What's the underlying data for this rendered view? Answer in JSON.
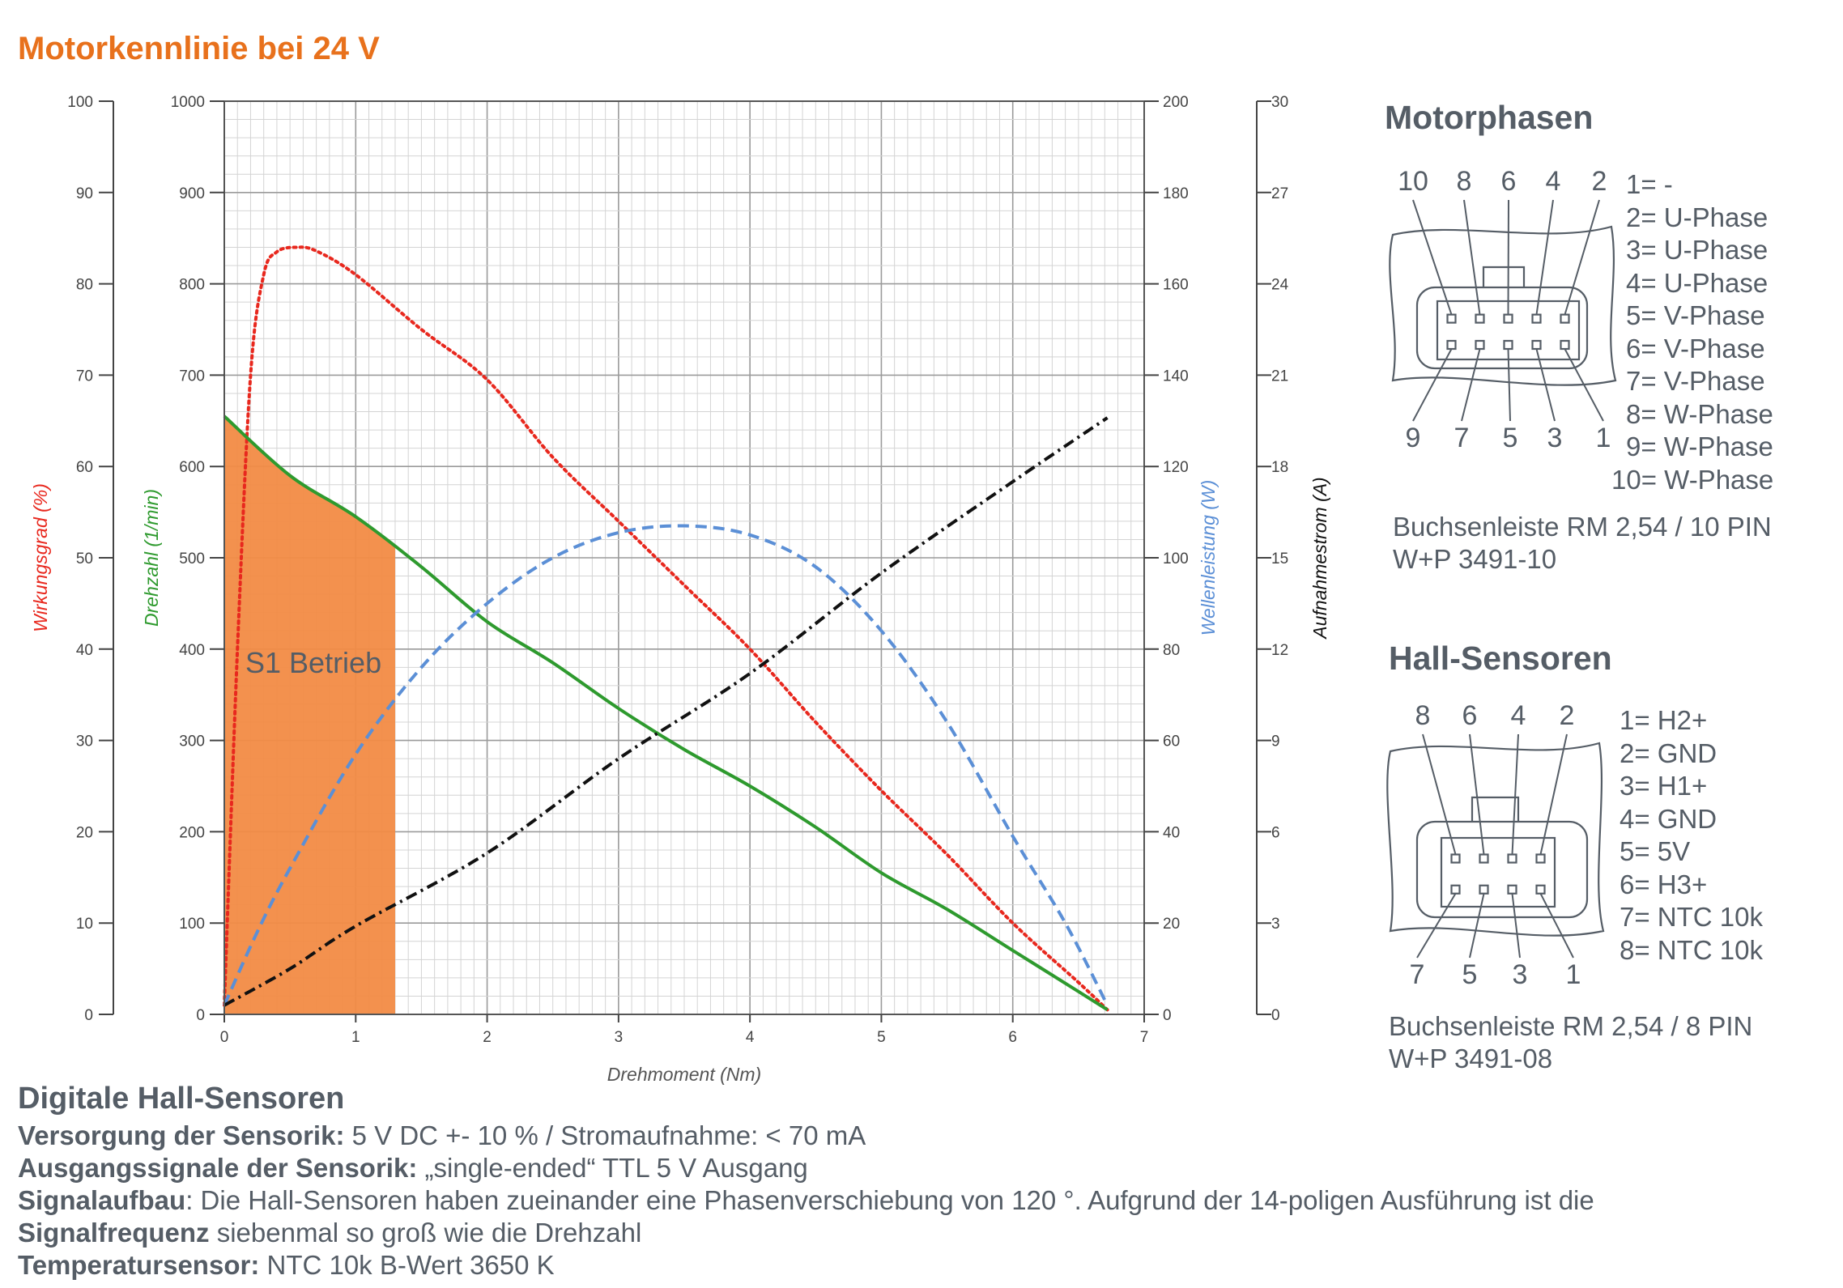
{
  "title": "Motorkennlinie bei 24 V",
  "chart_data": {
    "type": "line",
    "xlabel": "Drehmoment (Nm)",
    "xlim": [
      0,
      7
    ],
    "x_ticks": [
      "0",
      "1",
      "2",
      "3",
      "4",
      "5",
      "6",
      "7"
    ],
    "region": {
      "label": "S1 Betrieb",
      "x_from": 0,
      "x_to": 1.3,
      "color": "#f28b45"
    },
    "axes": [
      {
        "id": "eff",
        "label": "Wirkungsgrad (%)",
        "range": [
          0,
          100
        ],
        "ticks": [
          "0",
          "10",
          "20",
          "30",
          "40",
          "50",
          "60",
          "70",
          "80",
          "90",
          "100"
        ],
        "color": "#e8281e"
      },
      {
        "id": "speed",
        "label": "Drehzahl (1/min)",
        "range": [
          0,
          1000
        ],
        "ticks": [
          "0",
          "100",
          "200",
          "300",
          "400",
          "500",
          "600",
          "700",
          "800",
          "900",
          "1000"
        ],
        "color": "#2e9a2e"
      },
      {
        "id": "power",
        "label": "Wellenleistung (W)",
        "range": [
          0,
          200
        ],
        "ticks": [
          "0",
          "20",
          "40",
          "60",
          "80",
          "100",
          "120",
          "140",
          "160",
          "180",
          "200"
        ],
        "color": "#5b8fd6"
      },
      {
        "id": "curr",
        "label": "Aufnahmestrom (A)",
        "range": [
          0,
          30
        ],
        "ticks": [
          "0",
          "3",
          "6",
          "9",
          "12",
          "15",
          "18",
          "21",
          "24",
          "27",
          "30"
        ],
        "color": "#111111"
      }
    ],
    "series": [
      {
        "name": "Wirkungsgrad (%)",
        "axis": "eff",
        "color": "#e8281e",
        "style": "dotted",
        "x": [
          0,
          0.1,
          0.2,
          0.3,
          0.4,
          0.55,
          0.7,
          1.0,
          1.5,
          2.0,
          2.5,
          3.0,
          3.5,
          4.0,
          4.5,
          5.0,
          5.5,
          6.0,
          6.5,
          6.72
        ],
        "y": [
          1,
          40,
          70,
          81,
          83.5,
          84,
          83.6,
          81,
          75,
          69.5,
          61,
          54,
          47,
          40,
          32,
          24.5,
          17.5,
          10,
          3.5,
          0.5
        ]
      },
      {
        "name": "Drehzahl (1/min)",
        "axis": "speed",
        "color": "#2e9a2e",
        "style": "solid",
        "x": [
          0,
          0.5,
          1.0,
          1.5,
          2.0,
          2.5,
          3.0,
          3.5,
          4.0,
          4.5,
          5.0,
          5.5,
          6.0,
          6.5,
          6.72
        ],
        "y": [
          655,
          590,
          545,
          490,
          430,
          385,
          335,
          290,
          250,
          205,
          155,
          115,
          70,
          25,
          5
        ]
      },
      {
        "name": "Wellenleistung (W)",
        "axis": "power",
        "color": "#5b8fd6",
        "style": "dashed",
        "x": [
          0,
          0.25,
          0.5,
          1.0,
          1.5,
          2.0,
          2.5,
          3.0,
          3.5,
          4.0,
          4.5,
          5.0,
          5.5,
          6.0,
          6.4,
          6.72
        ],
        "y": [
          2,
          18,
          32,
          57,
          76,
          90,
          100,
          105.5,
          107,
          105,
          98,
          84,
          64,
          39,
          20,
          2
        ]
      },
      {
        "name": "Aufnahmestrom (A)",
        "axis": "curr",
        "color": "#111111",
        "style": "dashdot",
        "x": [
          0,
          0.5,
          1.0,
          2.0,
          3.0,
          4.0,
          5.0,
          6.0,
          6.72
        ],
        "y": [
          0.3,
          1.5,
          2.9,
          5.3,
          8.4,
          11.2,
          14.5,
          17.5,
          19.6
        ]
      }
    ]
  },
  "motorphasen": {
    "title": "Motorphasen",
    "top_pins": [
      "10",
      "8",
      "6",
      "4",
      "2"
    ],
    "bottom_pins": [
      "9",
      "7",
      "5",
      "3",
      "1"
    ],
    "legend": [
      "1= -",
      "2= U-Phase",
      "3= U-Phase",
      "4= U-Phase",
      "5= V-Phase",
      "6= V-Phase",
      "7= V-Phase",
      "8= W-Phase",
      "9= W-Phase",
      "10= W-Phase"
    ],
    "caption_line1": "Buchsenleiste RM 2,54 / 10 PIN",
    "caption_line2": "W+P 3491-10"
  },
  "hall": {
    "title": "Hall-Sensoren",
    "top_pins": [
      "8",
      "6",
      "4",
      "2"
    ],
    "bottom_pins": [
      "7",
      "5",
      "3",
      "1"
    ],
    "legend": [
      "1= H2+",
      "2= GND",
      "3= H1+",
      "4= GND",
      "5= 5V",
      "6= H3+",
      "7= NTC 10k",
      "8= NTC 10k"
    ],
    "caption_line1": "Buchsenleiste RM 2,54 / 8 PIN",
    "caption_line2": "W+P 3491-08"
  },
  "specs": {
    "heading": "Digitale Hall-Sensoren",
    "lines": [
      {
        "label": "Versorgung der Sensorik:",
        "text": " 5 V DC +- 10 % / Stromaufnahme: < 70 mA"
      },
      {
        "label": "Ausgangssignale der Sensorik:",
        "text": " „single-ended“ TTL 5 V Ausgang"
      },
      {
        "label": "Signalaufbau",
        "text": ": Die Hall-Sensoren haben zueinander eine Phasenverschiebung von 120 °. Aufgrund der 14-poligen Ausführung ist die"
      },
      {
        "label": "Signalfrequenz",
        "text": " siebenmal so groß wie die Drehzahl"
      },
      {
        "label": "Temperatursensor:",
        "text": " NTC 10k B-Wert 3650 K"
      }
    ]
  }
}
